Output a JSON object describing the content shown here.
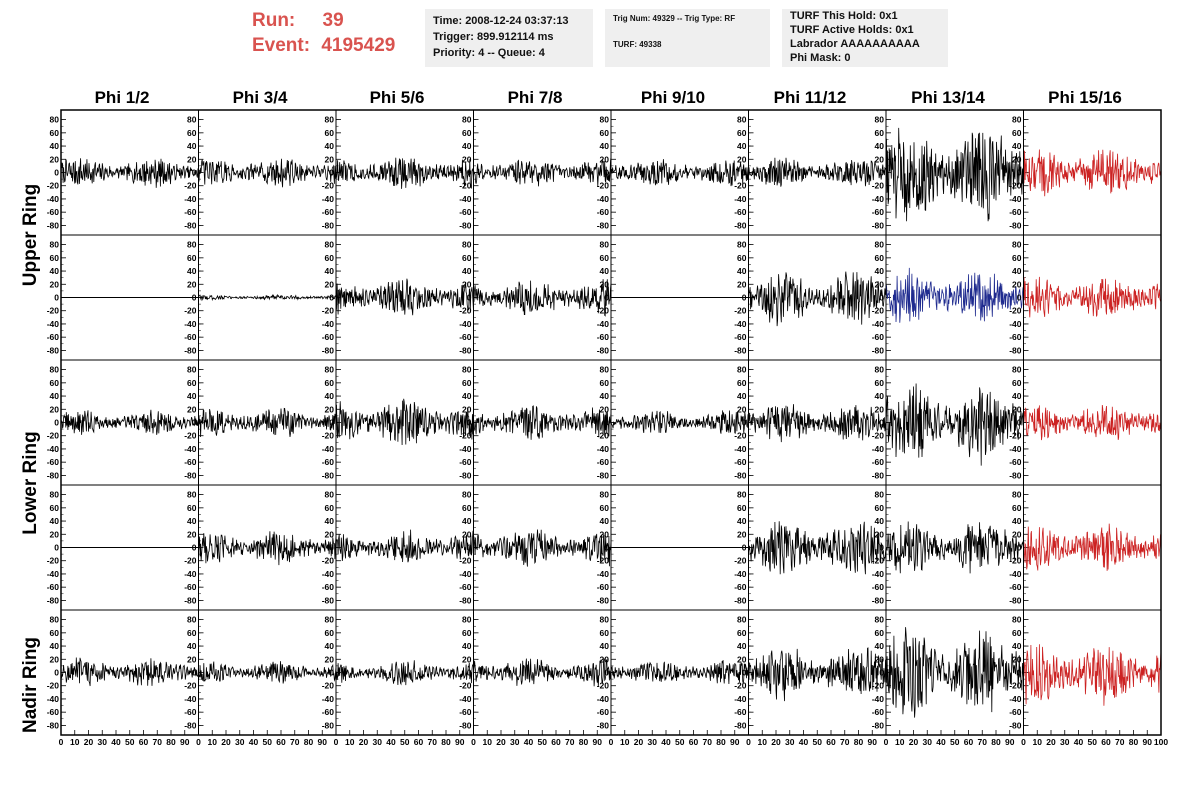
{
  "header": {
    "run_label": "Run:",
    "run_value": "39",
    "event_label": "Event:",
    "event_value": "4195429",
    "time_line": "Time: 2008-12-24 03:37:13",
    "trigger_line": "Trigger: 899.912114 ms",
    "priority_line": "Priority: 4 -- Queue: 4",
    "trig_line": "Trig Num: 49329 -- Trig Type: RF",
    "turf_line": "TURF: 49338",
    "turf_hold_line": "TURF This Hold: 0x1",
    "turf_active_line": "TURF Active Holds: 0x1",
    "labrador_line": "Labrador AAAAAAAAAA",
    "phi_mask_line": "Phi Mask: 0"
  },
  "chart_data": {
    "type": "line",
    "columns": [
      "Phi 1/2",
      "Phi 3/4",
      "Phi 5/6",
      "Phi 7/8",
      "Phi 9/10",
      "Phi 11/12",
      "Phi 13/14",
      "Phi 15/16"
    ],
    "row_groups": [
      {
        "name": "Upper Ring",
        "rows": [
          0,
          1
        ]
      },
      {
        "name": "Lower Ring",
        "rows": [
          2,
          3
        ]
      },
      {
        "name": "Nadir Ring",
        "rows": [
          4
        ]
      }
    ],
    "ylim": [
      -90,
      90
    ],
    "xlim": [
      0,
      100
    ],
    "y_ticks": [
      -80,
      -60,
      -40,
      -20,
      0,
      20,
      40,
      60,
      80
    ],
    "x_ticks": [
      0,
      10,
      20,
      30,
      40,
      50,
      60,
      70,
      80,
      90,
      100
    ],
    "colors": {
      "normal": "#000000",
      "trigger": "#cc2222",
      "hold": "#1f2b8f"
    },
    "panels": [
      [
        {
          "amp": 12,
          "color": "normal"
        },
        {
          "amp": 12,
          "color": "normal"
        },
        {
          "amp": 13,
          "color": "normal"
        },
        {
          "amp": 12,
          "color": "normal"
        },
        {
          "amp": 12,
          "color": "normal"
        },
        {
          "amp": 12,
          "color": "normal"
        },
        {
          "amp": 40,
          "color": "normal"
        },
        {
          "amp": 20,
          "color": "trigger"
        }
      ],
      [
        {
          "amp": 0,
          "color": "normal"
        },
        {
          "amp": 2,
          "color": "normal"
        },
        {
          "amp": 15,
          "color": "normal"
        },
        {
          "amp": 15,
          "color": "normal"
        },
        {
          "amp": 0,
          "color": "normal"
        },
        {
          "amp": 22,
          "color": "normal"
        },
        {
          "amp": 22,
          "color": "hold"
        },
        {
          "amp": 18,
          "color": "trigger"
        }
      ],
      [
        {
          "amp": 10,
          "color": "normal"
        },
        {
          "amp": 12,
          "color": "normal"
        },
        {
          "amp": 18,
          "color": "normal"
        },
        {
          "amp": 14,
          "color": "normal"
        },
        {
          "amp": 10,
          "color": "normal"
        },
        {
          "amp": 16,
          "color": "normal"
        },
        {
          "amp": 32,
          "color": "normal"
        },
        {
          "amp": 15,
          "color": "trigger"
        }
      ],
      [
        {
          "amp": 0,
          "color": "normal"
        },
        {
          "amp": 14,
          "color": "normal"
        },
        {
          "amp": 14,
          "color": "normal"
        },
        {
          "amp": 15,
          "color": "normal"
        },
        {
          "amp": 0,
          "color": "normal"
        },
        {
          "amp": 22,
          "color": "normal"
        },
        {
          "amp": 22,
          "color": "normal"
        },
        {
          "amp": 18,
          "color": "trigger"
        }
      ],
      [
        {
          "amp": 12,
          "color": "normal"
        },
        {
          "amp": 9,
          "color": "normal"
        },
        {
          "amp": 10,
          "color": "normal"
        },
        {
          "amp": 12,
          "color": "normal"
        },
        {
          "amp": 10,
          "color": "normal"
        },
        {
          "amp": 22,
          "color": "normal"
        },
        {
          "amp": 35,
          "color": "normal"
        },
        {
          "amp": 25,
          "color": "trigger"
        }
      ]
    ]
  }
}
